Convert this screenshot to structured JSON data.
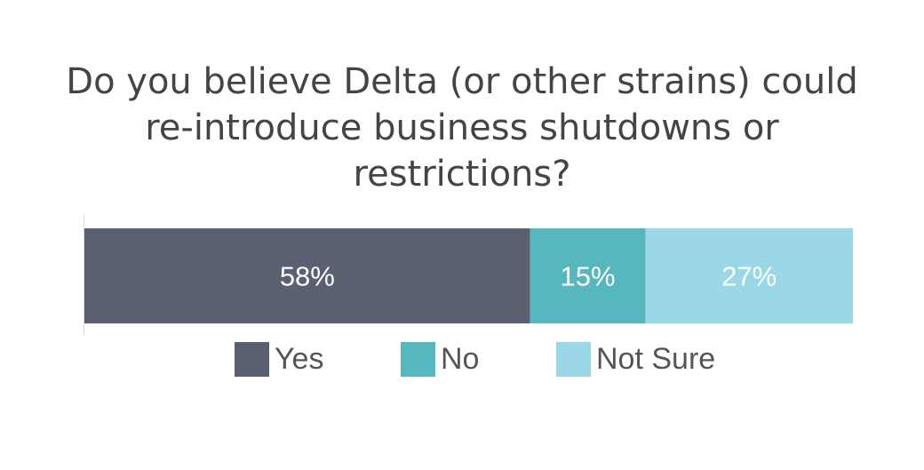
{
  "chart_data": {
    "type": "bar",
    "orientation": "horizontal",
    "stacked": true,
    "percent": true,
    "title": "Do you believe Delta (or other strains) could re-introduce business shutdowns or restrictions?",
    "categories": [
      ""
    ],
    "series": [
      {
        "name": "Yes",
        "values": [
          58
        ],
        "label": "58%",
        "color": "#5b6070"
      },
      {
        "name": "No",
        "values": [
          15
        ],
        "label": "15%",
        "color": "#57b7be"
      },
      {
        "name": "Not Sure",
        "values": [
          27
        ],
        "label": "27%",
        "color": "#9ad8e7"
      }
    ],
    "xlim": [
      0,
      100
    ],
    "grid": false,
    "legend": "bottom"
  }
}
